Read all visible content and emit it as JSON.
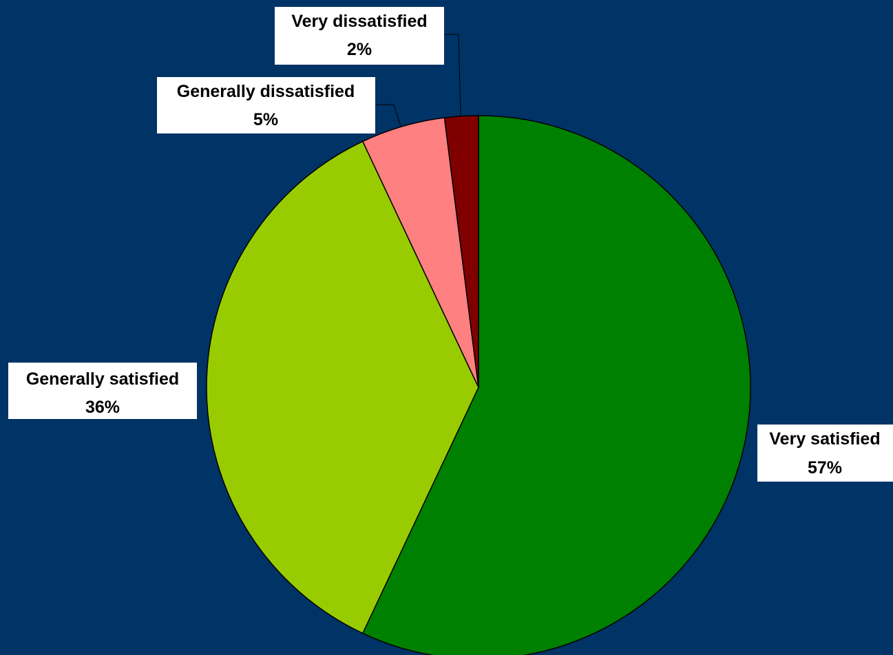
{
  "chart_data": {
    "type": "pie",
    "title": "",
    "start_angle_deg": 0,
    "direction": "clockwise",
    "slices": [
      {
        "label": "Very satisfied",
        "value": 57,
        "percent_label": "57%",
        "color": "#008000"
      },
      {
        "label": "Generally satisfied",
        "value": 36,
        "percent_label": "36%",
        "color": "#99CC00"
      },
      {
        "label": "Generally dissatisfied",
        "value": 5,
        "percent_label": "5%",
        "color": "#FF8080"
      },
      {
        "label": "Very dissatisfied",
        "value": 2,
        "percent_label": "2%",
        "color": "#800000"
      }
    ]
  },
  "colors": {
    "background": "#003366",
    "label_background": "#FFFFFF",
    "outline": "#000000"
  }
}
